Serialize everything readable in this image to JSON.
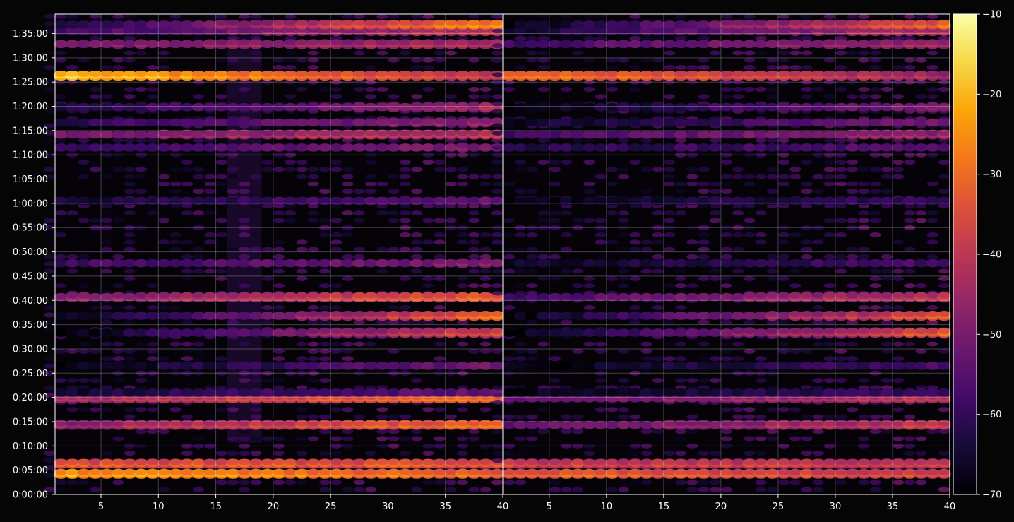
{
  "chart_data": {
    "type": "heatmap",
    "panels": [
      {
        "name": "",
        "x_ticks": [
          5,
          10,
          15,
          20,
          25,
          30,
          35,
          40
        ]
      },
      {
        "name": "",
        "x_ticks": [
          5,
          10,
          15,
          20,
          25,
          30,
          35,
          40
        ]
      }
    ],
    "xlim": [
      1,
      40
    ],
    "ylim_seconds": [
      0,
      5940
    ],
    "y_tick_labels": [
      "0:00:00",
      "0:05:00",
      "0:10:00",
      "0:15:00",
      "0:20:00",
      "0:25:00",
      "0:30:00",
      "0:35:00",
      "0:40:00",
      "0:45:00",
      "0:50:00",
      "0:55:00",
      "1:00:00",
      "1:05:00",
      "1:10:00",
      "1:15:00",
      "1:20:00",
      "1:25:00",
      "1:30:00",
      "1:35:00"
    ],
    "grid": true,
    "colorbar": {
      "range": [
        -70,
        -10
      ],
      "ticks": [
        -70,
        -60,
        -50,
        -40,
        -30,
        -20,
        -10
      ],
      "tick_labels": [
        "−70",
        "−60",
        "−50",
        "−40",
        "−30",
        "−20",
        "−10"
      ],
      "colormap": "inferno"
    },
    "bands": [
      {
        "t": 255,
        "left": [
          -20,
          -28
        ],
        "right": [
          -28,
          -34
        ]
      },
      {
        "t": 380,
        "left": [
          -30,
          -30
        ],
        "right": [
          -34,
          -36
        ]
      },
      {
        "t": 860,
        "left": [
          -42,
          -26
        ],
        "right": [
          -52,
          -34
        ]
      },
      {
        "t": 1190,
        "left": [
          -40,
          -26
        ],
        "right": [
          -52,
          -36
        ]
      },
      {
        "t": 1260,
        "left": [
          -62,
          -50
        ],
        "right": [
          -66,
          -56
        ]
      },
      {
        "t": 1590,
        "left": [
          -66,
          -48
        ],
        "right": [
          -66,
          -54
        ]
      },
      {
        "t": 2000,
        "left": [
          -66,
          -32
        ],
        "right": [
          -66,
          -30
        ]
      },
      {
        "t": 2210,
        "left": [
          -66,
          -26
        ],
        "right": [
          -66,
          -30
        ]
      },
      {
        "t": 2440,
        "left": [
          -46,
          -28
        ],
        "right": [
          -56,
          -36
        ]
      },
      {
        "t": 2860,
        "left": [
          -56,
          -46
        ],
        "right": [
          -64,
          -54
        ]
      },
      {
        "t": 3630,
        "left": [
          -62,
          -50
        ],
        "right": [
          -66,
          -56
        ]
      },
      {
        "t": 4290,
        "left": [
          -56,
          -46
        ],
        "right": [
          -60,
          -52
        ]
      },
      {
        "t": 4450,
        "left": [
          -48,
          -36
        ],
        "right": [
          -56,
          -42
        ]
      },
      {
        "t": 4600,
        "left": [
          -58,
          -44
        ],
        "right": [
          -64,
          -48
        ]
      },
      {
        "t": 4790,
        "left": [
          -60,
          -40
        ],
        "right": [
          -66,
          -46
        ]
      },
      {
        "t": 5180,
        "left": [
          -14,
          -36
        ],
        "right": [
          -24,
          -40
        ]
      },
      {
        "t": 5570,
        "left": [
          -48,
          -38
        ],
        "right": [
          -56,
          -40
        ]
      },
      {
        "t": 5730,
        "left": [
          -56,
          -36
        ],
        "right": [
          -62,
          -38
        ]
      },
      {
        "t": 5810,
        "left": [
          -60,
          -22
        ],
        "right": [
          -66,
          -28
        ]
      }
    ]
  }
}
